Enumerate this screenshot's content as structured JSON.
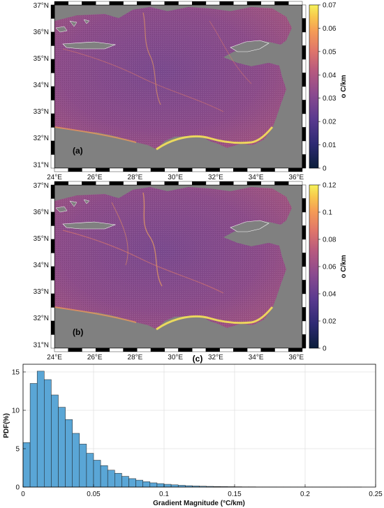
{
  "maps": [
    {
      "panel_label": "(a)",
      "lat_ticks": [
        "37°N",
        "36°N",
        "35°N",
        "34°N",
        "33°N",
        "32°N",
        "31°N"
      ],
      "lon_ticks": [
        "24°E",
        "26°E",
        "28°E",
        "30°E",
        "32°E",
        "34°E",
        "36°E"
      ],
      "colorbar": {
        "label": "o C/km",
        "ticks": [
          "0",
          "0.01",
          "0.02",
          "0.03",
          "0.04",
          "0.05",
          "0.06",
          "0.07"
        ],
        "range": [
          0,
          0.07
        ]
      }
    },
    {
      "panel_label": "(b)",
      "lat_ticks": [
        "37°N",
        "36°N",
        "35°N",
        "34°N",
        "33°N",
        "32°N",
        "31°N"
      ],
      "lon_ticks": [
        "24°E",
        "26°E",
        "28°E",
        "30°E",
        "32°E",
        "34°E",
        "36°E"
      ],
      "colorbar": {
        "label": "o C/km",
        "ticks": [
          "0",
          "0.02",
          "0.04",
          "0.06",
          "0.08",
          "0.1",
          "0.12"
        ],
        "range": [
          0,
          0.12
        ]
      }
    }
  ],
  "colors": {
    "land": "#808080",
    "cmap": [
      "#0b1e3b",
      "#2e2a73",
      "#5a3a8f",
      "#8a4a8f",
      "#b85a7e",
      "#e0766a",
      "#f59c55",
      "#f8c94d",
      "#f5f25a"
    ],
    "bar_fill": "#5aa6d6",
    "bar_edge": "#1c1c1c"
  },
  "chart_data": {
    "panel_label": "(c)",
    "type": "bar",
    "title": "",
    "xlabel": "Gradient Magnitude (°C/km)",
    "ylabel": "PDF(%)",
    "xlim": [
      0,
      0.25
    ],
    "ylim": [
      0,
      16
    ],
    "x_ticks": [
      "0",
      "0.05",
      "0.1",
      "0.15",
      "0.2",
      "0.25"
    ],
    "y_ticks": [
      "0",
      "5",
      "10",
      "15"
    ],
    "grid": true,
    "bin_width": 0.005,
    "values": [
      5.8,
      13.5,
      15.1,
      14.0,
      12.0,
      10.4,
      8.8,
      7.0,
      5.6,
      4.4,
      3.5,
      2.8,
      2.2,
      1.8,
      1.4,
      1.1,
      0.9,
      0.7,
      0.55,
      0.45,
      0.36,
      0.29,
      0.23,
      0.18,
      0.14,
      0.11,
      0.09,
      0.07,
      0.06,
      0.05,
      0.04,
      0.03,
      0.03,
      0.02,
      0.02,
      0.015,
      0.012,
      0.01,
      0.008,
      0.006,
      0.005,
      0.004,
      0.003,
      0.002,
      0.002,
      0.001,
      0.001,
      0.001,
      0.0,
      0.0
    ]
  }
}
